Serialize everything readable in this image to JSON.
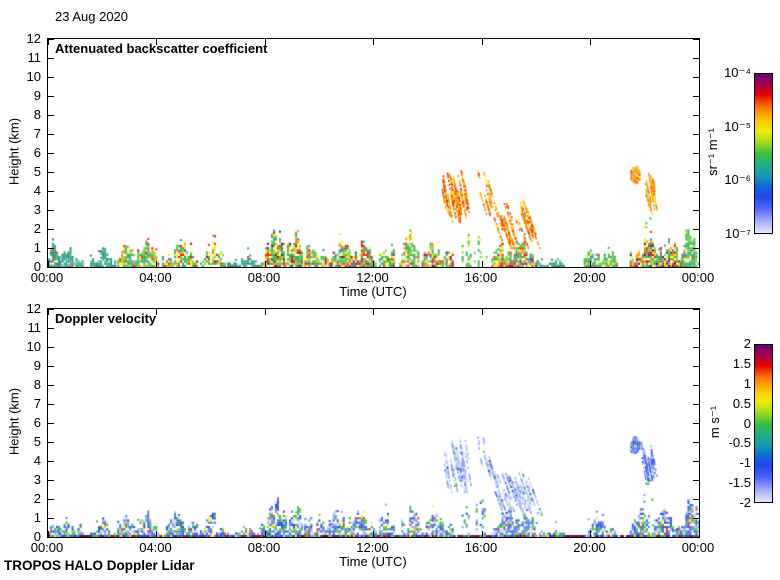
{
  "header": {
    "date": "23 Aug 2020"
  },
  "footer": {
    "instrument": "TROPOS HALO Doppler Lidar"
  },
  "colormap_stops": [
    [
      0,
      "#6a0076"
    ],
    [
      7,
      "#a8004c"
    ],
    [
      13,
      "#e60000"
    ],
    [
      21,
      "#ff7a00"
    ],
    [
      29,
      "#ffc400"
    ],
    [
      36,
      "#f2ee00"
    ],
    [
      43,
      "#a0dc20"
    ],
    [
      50,
      "#3cbe3c"
    ],
    [
      57,
      "#20b088"
    ],
    [
      64,
      "#149ab4"
    ],
    [
      70,
      "#0a70d0"
    ],
    [
      77,
      "#2446f0"
    ],
    [
      84,
      "#4a62ff"
    ],
    [
      90,
      "#8c96ff"
    ],
    [
      96,
      "#c6caf6"
    ],
    [
      100,
      "#e6e6fa"
    ]
  ],
  "palettes": {
    "teal": [
      [
        "#2e9e8c",
        5
      ],
      [
        "#27897a",
        3
      ],
      [
        "#45b89e",
        2
      ],
      [
        "#5fc76a",
        0.6
      ],
      [
        "#e8413c",
        0.2
      ]
    ],
    "teal2": [
      [
        "#2e9e8c",
        4
      ],
      [
        "#27897a",
        2
      ],
      [
        "#3db36f",
        2
      ],
      [
        "#52c43e",
        1.5
      ],
      [
        "#e8413c",
        0.3
      ]
    ],
    "tealG": [
      [
        "#2e9e8c",
        4
      ],
      [
        "#3cbb3c",
        3
      ],
      [
        "#86d32e",
        1.5
      ],
      [
        "#ffee22",
        0.6
      ],
      [
        "#e8413c",
        0.3
      ]
    ],
    "conv": [
      [
        "#2e9e8c",
        2.5
      ],
      [
        "#3cbb3c",
        3
      ],
      [
        "#86d32e",
        2
      ],
      [
        "#ffee22",
        1.6
      ],
      [
        "#ff9000",
        1.0
      ],
      [
        "#e82a00",
        1.0
      ],
      [
        "#8c1250",
        0.35
      ]
    ],
    "convS": [
      [
        "#2e9e8c",
        2
      ],
      [
        "#3cbb3c",
        2.5
      ],
      [
        "#86d32e",
        1.8
      ],
      [
        "#ffee22",
        1.6
      ],
      [
        "#ff9000",
        1.2
      ],
      [
        "#e82a00",
        1.5
      ],
      [
        "#8c1250",
        0.9
      ],
      [
        "#6a0a60",
        0.5
      ]
    ],
    "virga": [
      [
        "#ff9000",
        3
      ],
      [
        "#ffc400",
        2
      ],
      [
        "#e83a00",
        2
      ],
      [
        "#ffee55",
        1
      ],
      [
        "#d42a00",
        1
      ]
    ],
    "cloud": [
      [
        "#ff9000",
        4
      ],
      [
        "#ffb400",
        2
      ],
      [
        "#e85400",
        1.5
      ],
      [
        "#ffdd44",
        1
      ]
    ],
    "greens": [
      [
        "#3cbb3c",
        4
      ],
      [
        "#86d32e",
        2
      ],
      [
        "#2e9e8c",
        1
      ],
      [
        "#ffee22",
        0.4
      ]
    ],
    "velMain": [
      [
        "#3050e8",
        3.5
      ],
      [
        "#5578ff",
        2
      ],
      [
        "#3cbb3c",
        2.2
      ],
      [
        "#93a6ff",
        1.5
      ],
      [
        "#c8d0fa",
        1
      ],
      [
        "#ffee22",
        0.5
      ],
      [
        "#e83a00",
        0.35
      ],
      [
        "#2e9e8c",
        0.6
      ],
      [
        "#86d32e",
        0.6
      ]
    ],
    "velPale": [
      [
        "#a8b6ff",
        3
      ],
      [
        "#ccd4fa",
        3
      ],
      [
        "#8093ff",
        2
      ],
      [
        "#e8ecff",
        1.2
      ],
      [
        "#3cbb3c",
        0.6
      ],
      [
        "#3050e8",
        0.8
      ]
    ],
    "velCloud": [
      [
        "#3050e8",
        3
      ],
      [
        "#5578ff",
        2
      ],
      [
        "#93a6ff",
        1.5
      ],
      [
        "#3cbb3c",
        0.5
      ]
    ],
    "velGreens": [
      [
        "#3cbb3c",
        3
      ],
      [
        "#3050e8",
        2
      ],
      [
        "#86d32e",
        1
      ],
      [
        "#93a6ff",
        1
      ]
    ],
    "ground": [
      [
        "#5a0a3c",
        1
      ]
    ]
  },
  "chart_data": [
    {
      "type": "heatmap",
      "title": "Attenuated backscatter coefficient",
      "xlabel": "Time (UTC)",
      "ylabel": "Height (km)",
      "xlim_hours": [
        0,
        24
      ],
      "ylim_km": [
        0,
        12
      ],
      "xticks": [
        "00:00",
        "04:00",
        "08:00",
        "12:00",
        "16:00",
        "20:00",
        "00:00"
      ],
      "yticks": [
        "12",
        "11",
        "10",
        "9",
        "8",
        "7",
        "6",
        "5",
        "4",
        "3",
        "2",
        "1",
        "0"
      ],
      "colorbar": {
        "unit": "sr⁻¹ m⁻¹",
        "labels": [
          "10⁻⁴",
          "10⁻⁵",
          "10⁻⁶",
          "10⁻⁷"
        ],
        "scale": "log",
        "range": [
          "1e-7",
          "1e-4"
        ]
      },
      "features": [
        {
          "k": "conv",
          "t": [
            0,
            0.4
          ],
          "h": [
            0,
            1.45
          ],
          "p": "teal2",
          "d": 1.0
        },
        {
          "k": "bl",
          "t": [
            0.35,
            1.3
          ],
          "h": [
            0,
            0.95
          ],
          "p": "teal",
          "d": 1.0
        },
        {
          "k": "bl",
          "t": [
            1.55,
            2.45
          ],
          "h": [
            0,
            0.55
          ],
          "p": "teal",
          "d": 0.9
        },
        {
          "k": "blob",
          "t": [
            1.85,
            2.15
          ],
          "h": [
            0.35,
            0.95
          ],
          "p": "teal",
          "d": 0.9
        },
        {
          "k": "conv",
          "t": [
            2.55,
            4.1
          ],
          "h": [
            0,
            1.45
          ],
          "p": "conv",
          "d": 1.0
        },
        {
          "k": "conv",
          "t": [
            4.2,
            5.5
          ],
          "h": [
            0,
            1.35
          ],
          "p": "conv",
          "d": 0.95
        },
        {
          "k": "conv",
          "t": [
            5.6,
            6.5
          ],
          "h": [
            0,
            1.4
          ],
          "p": "conv",
          "d": 0.8
        },
        {
          "k": "bl",
          "t": [
            6.6,
            7.85
          ],
          "h": [
            0,
            0.5
          ],
          "p": "teal",
          "d": 0.9
        },
        {
          "k": "conv",
          "t": [
            7.85,
            9.4
          ],
          "h": [
            0,
            2.1
          ],
          "p": "convS",
          "d": 1.0
        },
        {
          "k": "conv",
          "t": [
            9.45,
            10.15
          ],
          "h": [
            0,
            1.6
          ],
          "p": "conv",
          "d": 0.9
        },
        {
          "k": "conv",
          "t": [
            10.2,
            12.1
          ],
          "h": [
            0,
            1.55
          ],
          "p": "convS",
          "d": 0.95
        },
        {
          "k": "conv",
          "t": [
            12.2,
            12.75
          ],
          "h": [
            0,
            1.7
          ],
          "p": "conv",
          "d": 0.8
        },
        {
          "k": "conv",
          "t": [
            12.95,
            13.65
          ],
          "h": [
            0,
            1.9
          ],
          "p": "conv",
          "d": 0.85
        },
        {
          "k": "conv",
          "t": [
            13.7,
            14.95
          ],
          "h": [
            0,
            1.3
          ],
          "p": "convS",
          "d": 0.9
        },
        {
          "k": "streaks",
          "t": [
            14.5,
            15.4
          ],
          "h": [
            2.4,
            5.2
          ],
          "p": "virga",
          "n": 26
        },
        {
          "k": "streaks",
          "t": [
            15.8,
            16.05
          ],
          "h": [
            4.6,
            5.3
          ],
          "p": "virga",
          "n": 4
        },
        {
          "k": "cols",
          "t": [
            15.25,
            16.15
          ],
          "h": [
            0,
            2.6
          ],
          "p": "greens",
          "d": 0.7
        },
        {
          "k": "streaks",
          "t": [
            15.9,
            16.4
          ],
          "h": [
            2.6,
            4.6
          ],
          "p": "virga",
          "n": 8,
          "slope": 0.2
        },
        {
          "k": "streaks",
          "t": [
            16.4,
            17.7
          ],
          "h": [
            1.0,
            3.6
          ],
          "p": "virga",
          "n": 28,
          "slope": 0.25
        },
        {
          "k": "conv",
          "t": [
            16.35,
            18.0
          ],
          "h": [
            0,
            1.5
          ],
          "p": "convS",
          "d": 1.0
        },
        {
          "k": "bl",
          "t": [
            17.95,
            19.0
          ],
          "h": [
            0,
            0.4
          ],
          "p": "teal",
          "d": 0.75
        },
        {
          "k": "conv",
          "t": [
            19.75,
            20.95
          ],
          "h": [
            0,
            1.05
          ],
          "p": "tealG",
          "d": 0.9
        },
        {
          "k": "blob",
          "t": [
            21.4,
            21.8
          ],
          "h": [
            4.35,
            5.25
          ],
          "p": "cloud",
          "d": 1.0
        },
        {
          "k": "streaks",
          "t": [
            21.85,
            22.35
          ],
          "h": [
            3.0,
            5.0
          ],
          "p": "cloud",
          "n": 12
        },
        {
          "k": "cols",
          "t": [
            21.95,
            22.3
          ],
          "h": [
            1.8,
            3.2
          ],
          "p": "greens",
          "d": 0.35
        },
        {
          "k": "conv",
          "t": [
            21.45,
            23.35
          ],
          "h": [
            0,
            1.65
          ],
          "p": "convS",
          "d": 1.0
        },
        {
          "k": "conv",
          "t": [
            23.35,
            24.0
          ],
          "h": [
            0,
            2.15
          ],
          "p": "tealG",
          "d": 1.0
        }
      ]
    },
    {
      "type": "heatmap",
      "title": "Doppler velocity",
      "xlabel": "Time (UTC)",
      "ylabel": "Height (km)",
      "xlim_hours": [
        0,
        24
      ],
      "ylim_km": [
        0,
        12
      ],
      "xticks": [
        "00:00",
        "04:00",
        "08:00",
        "12:00",
        "16:00",
        "20:00",
        "00:00"
      ],
      "yticks": [
        "12",
        "11",
        "10",
        "9",
        "8",
        "7",
        "6",
        "5",
        "4",
        "3",
        "2",
        "1",
        "0"
      ],
      "colorbar": {
        "unit": "m s⁻¹",
        "labels": [
          "2",
          "1.5",
          "1",
          "0.5",
          "0",
          "-0.5",
          "-1",
          "-1.5",
          "-2"
        ],
        "scale": "linear",
        "range": [
          -2,
          2
        ]
      },
      "features": [
        {
          "k": "line",
          "t": [
            0,
            24
          ],
          "h": [
            0,
            0.08
          ],
          "p": "ground"
        },
        {
          "k": "conv",
          "t": [
            0,
            0.4
          ],
          "h": [
            0,
            1.45
          ],
          "p": "velMain",
          "d": 0.85
        },
        {
          "k": "bl",
          "t": [
            0.35,
            1.3
          ],
          "h": [
            0,
            0.95
          ],
          "p": "velMain",
          "d": 0.8
        },
        {
          "k": "bl",
          "t": [
            1.55,
            2.45
          ],
          "h": [
            0,
            0.55
          ],
          "p": "velMain",
          "d": 0.75
        },
        {
          "k": "blob",
          "t": [
            1.85,
            2.15
          ],
          "h": [
            0.35,
            0.95
          ],
          "p": "velMain",
          "d": 0.8
        },
        {
          "k": "conv",
          "t": [
            2.55,
            4.1
          ],
          "h": [
            0,
            1.45
          ],
          "p": "velMain",
          "d": 0.85
        },
        {
          "k": "conv",
          "t": [
            4.2,
            5.5
          ],
          "h": [
            0,
            1.35
          ],
          "p": "velMain",
          "d": 0.8
        },
        {
          "k": "conv",
          "t": [
            5.6,
            6.5
          ],
          "h": [
            0,
            1.4
          ],
          "p": "velMain",
          "d": 0.7
        },
        {
          "k": "bl",
          "t": [
            6.6,
            7.85
          ],
          "h": [
            0,
            0.5
          ],
          "p": "velMain",
          "d": 0.75
        },
        {
          "k": "conv",
          "t": [
            7.85,
            9.4
          ],
          "h": [
            0,
            2.1
          ],
          "p": "velMain",
          "d": 0.85
        },
        {
          "k": "conv",
          "t": [
            9.45,
            10.15
          ],
          "h": [
            0,
            1.6
          ],
          "p": "velMain",
          "d": 0.8
        },
        {
          "k": "conv",
          "t": [
            10.2,
            12.1
          ],
          "h": [
            0,
            1.55
          ],
          "p": "velMain",
          "d": 0.8
        },
        {
          "k": "conv",
          "t": [
            12.2,
            12.75
          ],
          "h": [
            0,
            1.7
          ],
          "p": "velMain",
          "d": 0.7
        },
        {
          "k": "conv",
          "t": [
            12.95,
            13.65
          ],
          "h": [
            0,
            1.9
          ],
          "p": "velMain",
          "d": 0.75
        },
        {
          "k": "conv",
          "t": [
            13.7,
            14.95
          ],
          "h": [
            0,
            1.3
          ],
          "p": "velMain",
          "d": 0.8
        },
        {
          "k": "streaks",
          "t": [
            14.5,
            15.4
          ],
          "h": [
            2.4,
            5.2
          ],
          "p": "velPale",
          "n": 26
        },
        {
          "k": "streaks",
          "t": [
            15.8,
            16.05
          ],
          "h": [
            4.6,
            5.3
          ],
          "p": "velPale",
          "n": 4
        },
        {
          "k": "cols",
          "t": [
            15.25,
            16.15
          ],
          "h": [
            0,
            2.6
          ],
          "p": "velGreens",
          "d": 0.6
        },
        {
          "k": "streaks",
          "t": [
            15.9,
            16.4
          ],
          "h": [
            2.6,
            4.6
          ],
          "p": "velPale",
          "n": 8,
          "slope": 0.2
        },
        {
          "k": "streaks",
          "t": [
            16.4,
            17.7
          ],
          "h": [
            1.0,
            3.6
          ],
          "p": "velPale",
          "n": 28,
          "slope": 0.25
        },
        {
          "k": "conv",
          "t": [
            16.35,
            18.0
          ],
          "h": [
            0,
            1.5
          ],
          "p": "velMain",
          "d": 0.85
        },
        {
          "k": "bl",
          "t": [
            17.95,
            19.0
          ],
          "h": [
            0,
            0.4
          ],
          "p": "velMain",
          "d": 0.65
        },
        {
          "k": "conv",
          "t": [
            19.75,
            20.95
          ],
          "h": [
            0,
            1.05
          ],
          "p": "velMain",
          "d": 0.8
        },
        {
          "k": "blob",
          "t": [
            21.4,
            21.8
          ],
          "h": [
            4.35,
            5.25
          ],
          "p": "velCloud",
          "d": 0.9
        },
        {
          "k": "streaks",
          "t": [
            21.85,
            22.35
          ],
          "h": [
            3.0,
            5.0
          ],
          "p": "velCloud",
          "n": 12
        },
        {
          "k": "cols",
          "t": [
            21.95,
            22.3
          ],
          "h": [
            1.8,
            3.2
          ],
          "p": "velGreens",
          "d": 0.35
        },
        {
          "k": "conv",
          "t": [
            21.45,
            23.35
          ],
          "h": [
            0,
            1.65
          ],
          "p": "velMain",
          "d": 0.85
        },
        {
          "k": "conv",
          "t": [
            23.35,
            24.0
          ],
          "h": [
            0,
            2.15
          ],
          "p": "velMain",
          "d": 0.85
        }
      ]
    }
  ]
}
